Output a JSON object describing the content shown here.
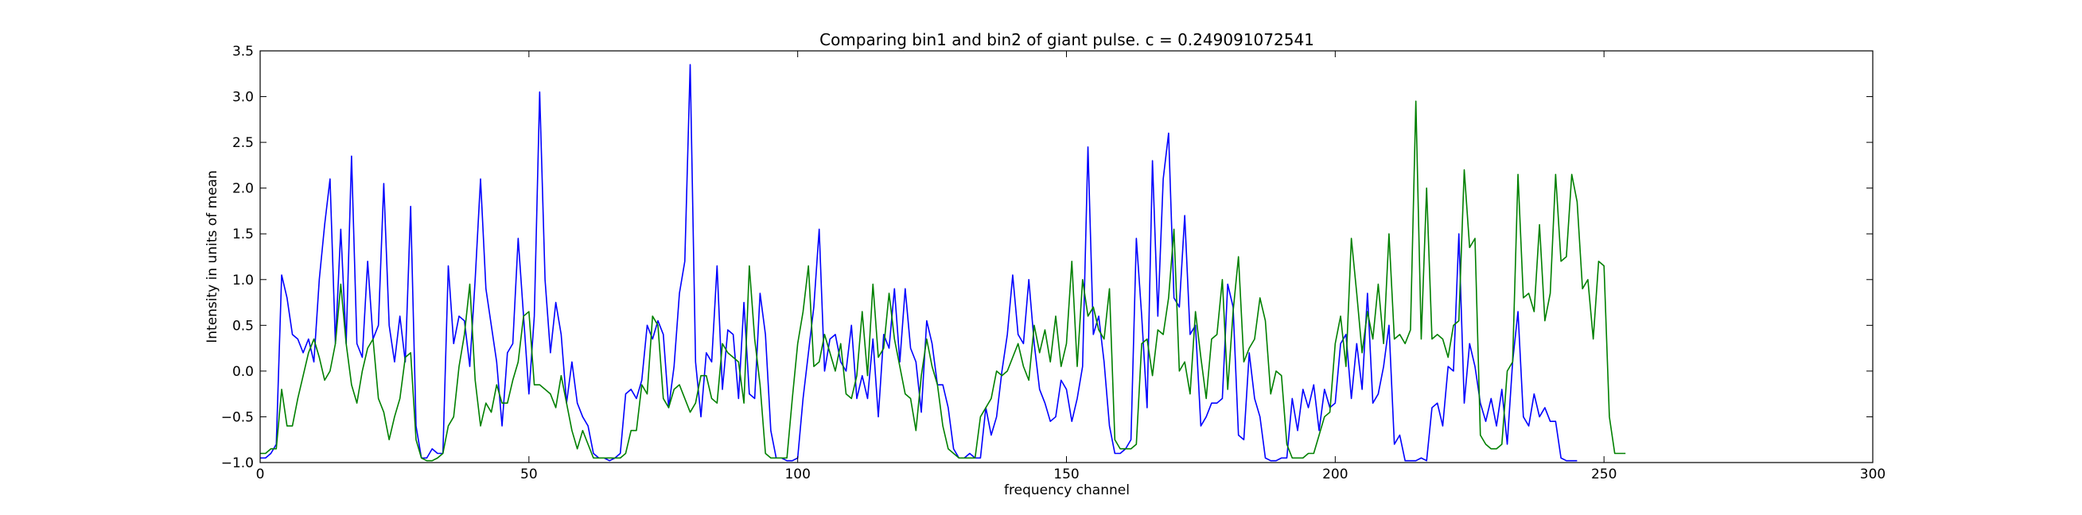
{
  "chart_data": {
    "type": "line",
    "title": "Comparing bin1 and bin2 of giant pulse. c = 0.249091072541",
    "xlabel": "frequency channel",
    "ylabel": "Intensity in units of mean",
    "xlim": [
      0,
      300
    ],
    "ylim": [
      -1.0,
      3.5
    ],
    "xticks": [
      0,
      50,
      100,
      150,
      200,
      250,
      300
    ],
    "xtick_labels": [
      "0",
      "50",
      "100",
      "150",
      "200",
      "250",
      "300"
    ],
    "yticks": [
      -1.0,
      -0.5,
      0.0,
      0.5,
      1.0,
      1.5,
      2.0,
      2.5,
      3.0,
      3.5
    ],
    "ytick_labels": [
      "−1.0",
      "−0.5",
      "0.0",
      "0.5",
      "1.0",
      "1.5",
      "2.0",
      "2.5",
      "3.0",
      "3.5"
    ],
    "grid": false,
    "series": [
      {
        "color": "#0000ff",
        "values": [
          -0.95,
          -0.95,
          -0.9,
          -0.8,
          1.05,
          0.8,
          0.4,
          0.35,
          0.2,
          0.35,
          0.1,
          1.0,
          1.6,
          2.1,
          0.3,
          1.55,
          0.3,
          2.35,
          0.3,
          0.15,
          1.2,
          0.35,
          0.5,
          2.05,
          0.5,
          0.1,
          0.6,
          0.1,
          1.8,
          -0.6,
          -0.95,
          -0.95,
          -0.85,
          -0.9,
          -0.9,
          1.15,
          0.3,
          0.6,
          0.55,
          0.05,
          1.0,
          2.1,
          0.9,
          0.5,
          0.1,
          -0.6,
          0.2,
          0.3,
          1.45,
          0.6,
          -0.25,
          0.6,
          3.05,
          1.0,
          0.2,
          0.75,
          0.4,
          -0.35,
          0.1,
          -0.35,
          -0.5,
          -0.6,
          -0.9,
          -0.95,
          -0.95,
          -0.98,
          -0.95,
          -0.9,
          -0.25,
          -0.2,
          -0.3,
          -0.1,
          0.5,
          0.35,
          0.55,
          0.4,
          -0.4,
          0.05,
          0.85,
          1.2,
          3.35,
          0.1,
          -0.5,
          0.2,
          0.1,
          1.15,
          -0.2,
          0.45,
          0.4,
          -0.3,
          0.75,
          -0.25,
          -0.3,
          0.85,
          0.4,
          -0.65,
          -0.95,
          -0.95,
          -0.98,
          -0.98,
          -0.95,
          -0.3,
          0.2,
          0.7,
          1.55,
          0.0,
          0.35,
          0.4,
          0.1,
          0.0,
          0.5,
          -0.3,
          -0.05,
          -0.3,
          0.35,
          -0.5,
          0.4,
          0.25,
          0.9,
          0.1,
          0.9,
          0.25,
          0.1,
          -0.45,
          0.55,
          0.3,
          -0.15,
          -0.15,
          -0.4,
          -0.85,
          -0.95,
          -0.95,
          -0.9,
          -0.95,
          -0.95,
          -0.4,
          -0.7,
          -0.5,
          0.0,
          0.4,
          1.05,
          0.4,
          0.3,
          1.0,
          0.3,
          -0.2,
          -0.35,
          -0.55,
          -0.5,
          -0.1,
          -0.2,
          -0.55,
          -0.3,
          0.05,
          2.45,
          0.4,
          0.6,
          0.1,
          -0.6,
          -0.9,
          -0.9,
          -0.85,
          -0.75,
          1.45,
          0.6,
          -0.4,
          2.3,
          0.6,
          2.1,
          2.6,
          0.8,
          0.7,
          1.7,
          0.4,
          0.5,
          -0.6,
          -0.5,
          -0.35,
          -0.35,
          -0.3,
          0.95,
          0.7,
          -0.7,
          -0.75,
          0.2,
          -0.3,
          -0.5,
          -0.95,
          -0.98,
          -0.98,
          -0.95,
          -0.95,
          -0.3,
          -0.65,
          -0.2,
          -0.4,
          -0.15,
          -0.65,
          -0.2,
          -0.4,
          -0.35,
          0.3,
          0.4,
          -0.3,
          0.3,
          -0.2,
          0.85,
          -0.35,
          -0.25,
          0.05,
          0.5,
          -0.8,
          -0.7,
          -0.98,
          -0.98,
          -0.98,
          -0.95,
          -0.98,
          -0.4,
          -0.35,
          -0.6,
          0.05,
          0.0,
          1.5,
          -0.35,
          0.3,
          0.05,
          -0.35,
          -0.55,
          -0.3,
          -0.6,
          -0.2,
          -0.8,
          0.1,
          0.65,
          -0.5,
          -0.6,
          -0.25,
          -0.5,
          -0.4,
          -0.55,
          -0.55,
          -0.95,
          -0.98,
          -0.98,
          -0.98
        ]
      },
      {
        "color": "#008000",
        "values": [
          -0.9,
          -0.9,
          -0.85,
          -0.85,
          -0.2,
          -0.6,
          -0.6,
          -0.3,
          -0.05,
          0.2,
          0.35,
          0.15,
          -0.1,
          0.0,
          0.3,
          0.95,
          0.3,
          -0.15,
          -0.35,
          0.0,
          0.25,
          0.35,
          -0.3,
          -0.45,
          -0.75,
          -0.5,
          -0.3,
          0.15,
          0.2,
          -0.75,
          -0.95,
          -0.98,
          -0.98,
          -0.95,
          -0.9,
          -0.6,
          -0.5,
          0.05,
          0.4,
          0.95,
          -0.1,
          -0.6,
          -0.35,
          -0.45,
          -0.15,
          -0.35,
          -0.35,
          -0.1,
          0.1,
          0.6,
          0.65,
          -0.15,
          -0.15,
          -0.2,
          -0.25,
          -0.4,
          -0.05,
          -0.35,
          -0.65,
          -0.85,
          -0.65,
          -0.8,
          -0.95,
          -0.95,
          -0.95,
          -0.95,
          -0.95,
          -0.95,
          -0.9,
          -0.65,
          -0.65,
          -0.15,
          -0.25,
          0.6,
          0.5,
          -0.3,
          -0.4,
          -0.2,
          -0.15,
          -0.3,
          -0.45,
          -0.35,
          -0.05,
          -0.05,
          -0.3,
          -0.35,
          0.3,
          0.2,
          0.15,
          0.1,
          -0.35,
          1.15,
          0.35,
          -0.15,
          -0.9,
          -0.95,
          -0.95,
          -0.95,
          -0.95,
          -0.3,
          0.3,
          0.65,
          1.15,
          0.05,
          0.1,
          0.4,
          0.2,
          0.0,
          0.3,
          -0.25,
          -0.3,
          -0.05,
          0.65,
          -0.05,
          0.95,
          0.15,
          0.25,
          0.85,
          0.35,
          0.05,
          -0.25,
          -0.3,
          -0.65,
          -0.05,
          0.35,
          0.05,
          -0.15,
          -0.6,
          -0.85,
          -0.9,
          -0.95,
          -0.95,
          -0.95,
          -0.95,
          -0.5,
          -0.4,
          -0.3,
          0.0,
          -0.05,
          0.0,
          0.15,
          0.3,
          0.05,
          -0.1,
          0.5,
          0.2,
          0.45,
          0.1,
          0.6,
          0.05,
          0.3,
          1.2,
          0.05,
          1.0,
          0.6,
          0.7,
          0.45,
          0.35,
          0.9,
          -0.75,
          -0.85,
          -0.85,
          -0.85,
          -0.8,
          0.3,
          0.35,
          -0.05,
          0.45,
          0.4,
          0.8,
          1.55,
          0.0,
          0.1,
          -0.25,
          0.65,
          0.15,
          -0.3,
          0.35,
          0.4,
          1.0,
          -0.2,
          0.65,
          1.25,
          0.1,
          0.25,
          0.35,
          0.8,
          0.55,
          -0.25,
          0.0,
          -0.05,
          -0.8,
          -0.95,
          -0.95,
          -0.95,
          -0.9,
          -0.9,
          -0.7,
          -0.5,
          -0.45,
          0.3,
          0.6,
          0.05,
          1.45,
          0.85,
          0.2,
          0.65,
          0.35,
          0.95,
          0.3,
          1.5,
          0.35,
          0.4,
          0.3,
          0.45,
          2.95,
          0.35,
          2.0,
          0.35,
          0.4,
          0.35,
          0.15,
          0.5,
          0.55,
          2.2,
          1.35,
          1.45,
          -0.7,
          -0.8,
          -0.85,
          -0.85,
          -0.8,
          0.0,
          0.1,
          2.15,
          0.8,
          0.85,
          0.65,
          1.6,
          0.55,
          0.85,
          2.15,
          1.2,
          1.25,
          2.15,
          1.85,
          0.9,
          1.0,
          0.35,
          1.2,
          1.15,
          -0.5,
          -0.9,
          -0.9,
          -0.9
        ]
      }
    ]
  }
}
